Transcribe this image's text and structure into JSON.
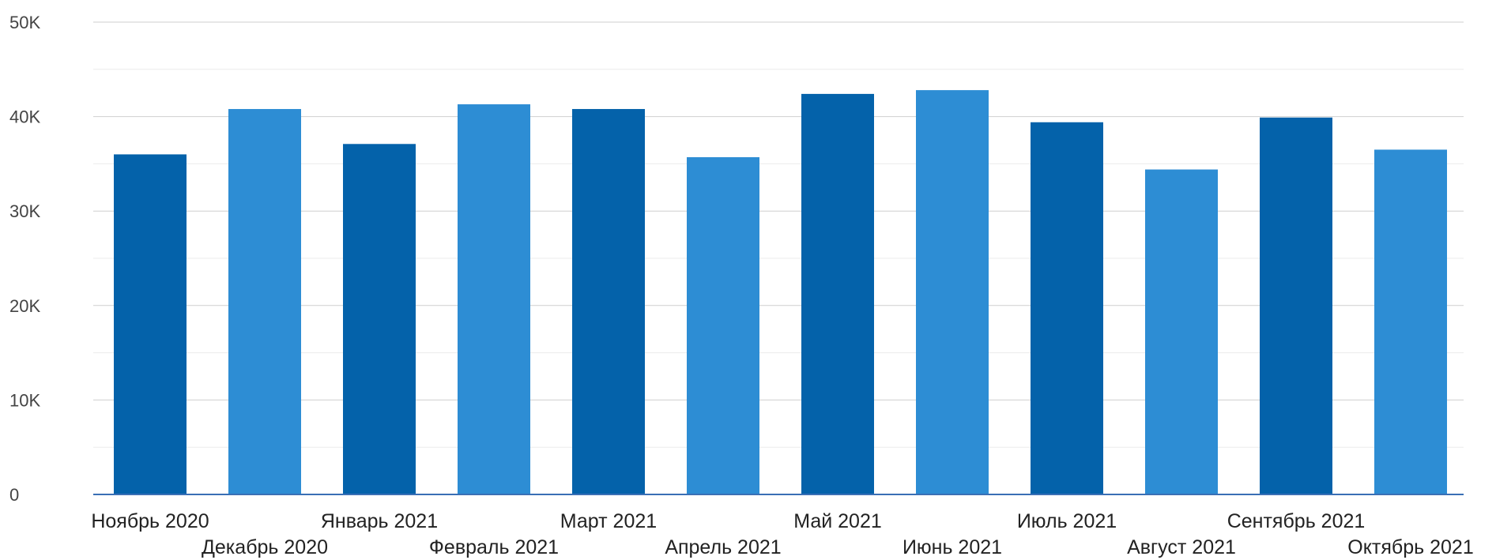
{
  "colors": {
    "dark": "#0462AA",
    "light": "#2D8DD4"
  },
  "chart_data": {
    "type": "bar",
    "title": "",
    "xlabel": "",
    "ylabel": "",
    "ylim": [
      0,
      50000
    ],
    "grid": true,
    "yticks": [
      0,
      10000,
      20000,
      30000,
      40000,
      50000
    ],
    "ytick_labels": [
      "0",
      "10K",
      "20K",
      "30K",
      "40K",
      "50K"
    ],
    "categories": [
      "Ноябрь 2020",
      "Декабрь 2020",
      "Январь 2021",
      "Февраль 2021",
      "Март 2021",
      "Апрель 2021",
      "Май 2021",
      "Июнь 2021",
      "Июль 2021",
      "Август 2021",
      "Сентябрь 2021",
      "Октябрь 2021"
    ],
    "values": [
      36000,
      40800,
      37100,
      41300,
      40800,
      35700,
      42400,
      42800,
      39400,
      34400,
      39900,
      36500
    ],
    "bar_colors": [
      "dark",
      "light",
      "dark",
      "light",
      "dark",
      "light",
      "dark",
      "light",
      "dark",
      "light",
      "dark",
      "light"
    ]
  }
}
